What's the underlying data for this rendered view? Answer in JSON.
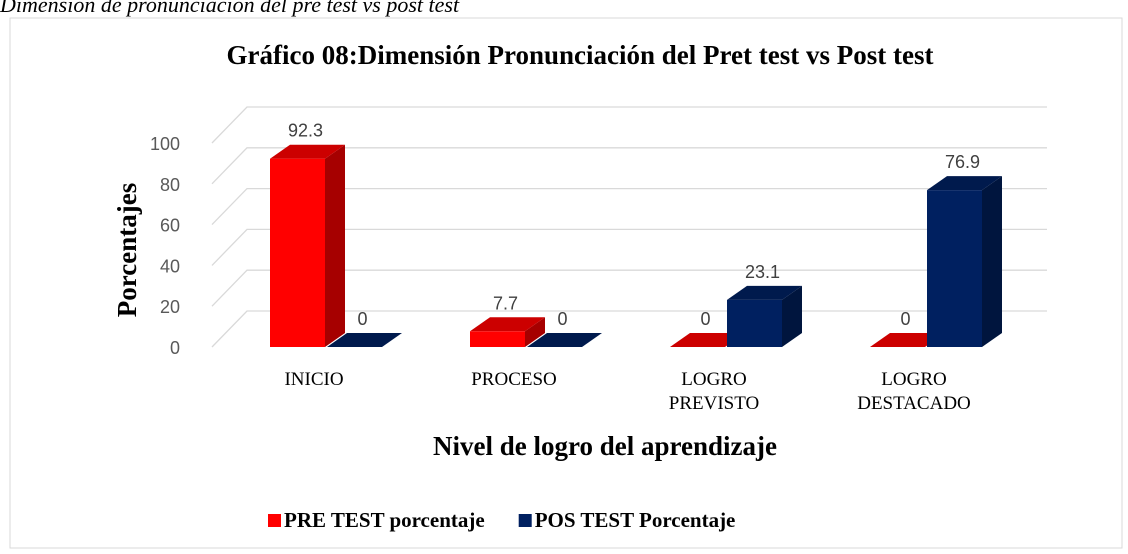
{
  "caption": "Dimensión de pronunciación del pre test vs post test",
  "chart_data": {
    "type": "bar3d",
    "title": "Gráfico 08:Dimensión Pronunciación del Pret test vs Post test",
    "categories": [
      "INICIO",
      "PROCESO",
      "LOGRO PREVISTO",
      "LOGRO DESTACADO"
    ],
    "series": [
      {
        "name": "PRE TEST porcentaje",
        "color": "#ff0000",
        "values": [
          92.3,
          7.7,
          0,
          0
        ]
      },
      {
        "name": "POS TEST Porcentaje",
        "color": "#002060",
        "values": [
          0,
          0,
          23.1,
          76.9
        ]
      }
    ],
    "x_label": "Nivel de logro del aprendizaje",
    "y_label": "Porcentajes",
    "ylim": [
      0,
      100
    ],
    "yticks": [
      0,
      20,
      40,
      60,
      80,
      100
    ],
    "grid": true,
    "legend": "bottom"
  }
}
